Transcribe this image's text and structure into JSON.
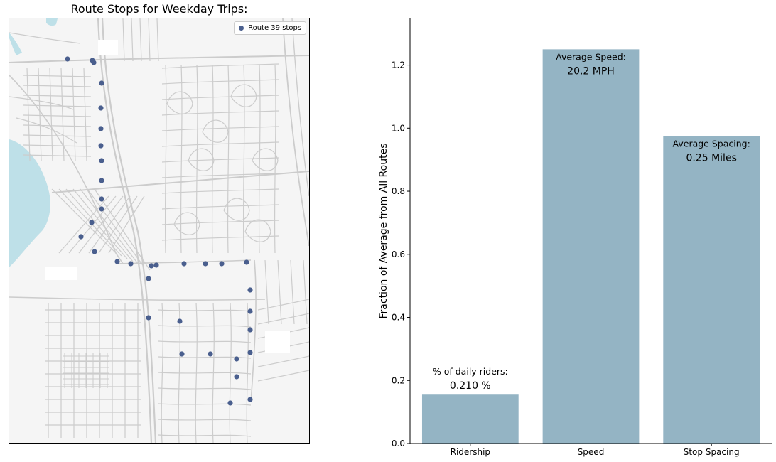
{
  "colors": {
    "bar": "#94b4c4",
    "stop_marker": "#4a5f8e",
    "water": "#bee0e8",
    "road": "#cccccc",
    "land": "#f5f5f5"
  },
  "map": {
    "title": "Route Stops for Weekday Trips:",
    "legend_label": "Route 39 stops",
    "legend_marker": "circle-marker-icon"
  },
  "chart_data": {
    "type": "bar",
    "title": "",
    "xlabel": "",
    "ylabel": "Fraction of Average from All Routes",
    "categories": [
      "Ridership",
      "Speed",
      "Stop Spacing"
    ],
    "values": [
      0.155,
      1.25,
      0.975
    ],
    "ylim": [
      0,
      1.35
    ],
    "yticks": [
      "0.0",
      "0.2",
      "0.4",
      "0.6",
      "0.8",
      "1.0",
      "1.2"
    ],
    "grid": false,
    "annotations": [
      {
        "label": "% of daily riders:",
        "value": "0.210 %"
      },
      {
        "label": "Average Speed:",
        "value": "20.2 MPH"
      },
      {
        "label": "Average Spacing:",
        "value": "0.25 Miles"
      }
    ]
  }
}
